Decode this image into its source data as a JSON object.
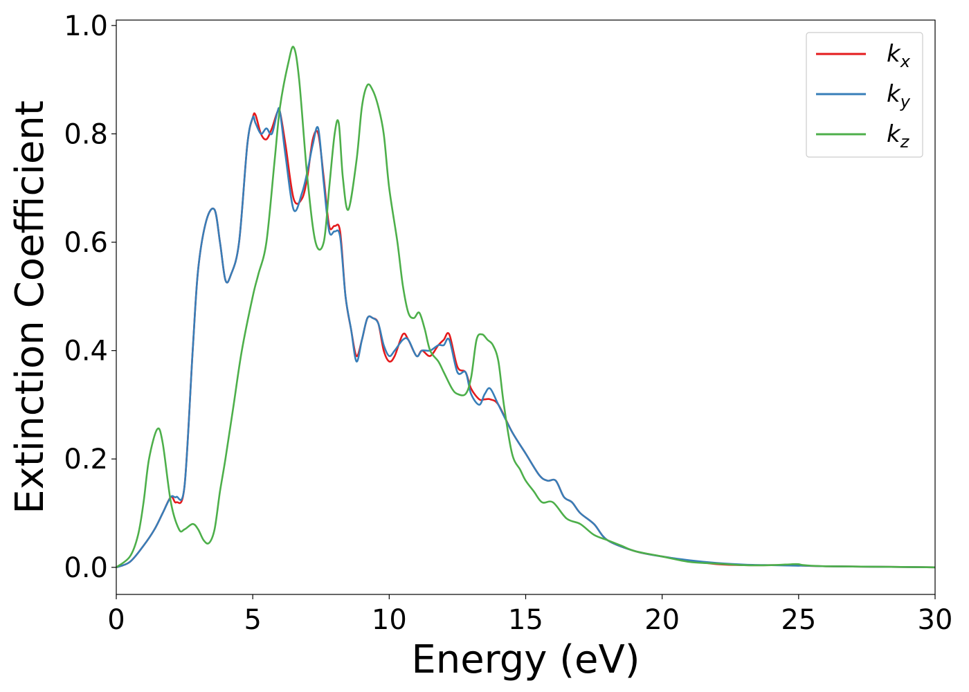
{
  "chart_data": {
    "type": "line",
    "xlabel": "Energy (eV)",
    "ylabel": "Extinction Coefficient",
    "xlim": [
      0,
      30
    ],
    "ylim": [
      -0.05,
      1.01
    ],
    "xticks": [
      0,
      5,
      10,
      15,
      20,
      25,
      30
    ],
    "yticks": [
      0.0,
      0.2,
      0.4,
      0.6,
      0.8,
      1.0
    ],
    "xtick_labels": [
      "0",
      "5",
      "10",
      "15",
      "20",
      "25",
      "30"
    ],
    "ytick_labels": [
      "0.0",
      "0.2",
      "0.4",
      "0.6",
      "0.8",
      "1.0"
    ],
    "grid": false,
    "legend_position": "top-right",
    "series": [
      {
        "name": "k",
        "subscript": "x",
        "color": "#e41a1c",
        "x": [
          0,
          0.5,
          1.0,
          1.4,
          1.7,
          2.0,
          2.2,
          2.5,
          2.8,
          3.0,
          3.3,
          3.6,
          3.8,
          4.0,
          4.2,
          4.5,
          4.8,
          5.0,
          5.1,
          5.3,
          5.5,
          5.7,
          5.9,
          6.0,
          6.2,
          6.5,
          6.8,
          7.0,
          7.2,
          7.4,
          7.6,
          7.8,
          8.0,
          8.2,
          8.4,
          8.6,
          8.8,
          9.0,
          9.2,
          9.4,
          9.6,
          9.8,
          10.0,
          10.2,
          10.5,
          10.7,
          11.0,
          11.2,
          11.5,
          11.8,
          12.0,
          12.2,
          12.5,
          12.8,
          13.0,
          13.3,
          13.5,
          13.7,
          14.0,
          14.5,
          15.0,
          15.5,
          15.8,
          16.1,
          16.4,
          16.7,
          17.0,
          17.5,
          18.0,
          19.0,
          20.0,
          21.0,
          22.0,
          23.0,
          24.0,
          24.9,
          25.2,
          26.0,
          28.0,
          30.0
        ],
        "y": [
          0.0,
          0.01,
          0.04,
          0.07,
          0.1,
          0.13,
          0.12,
          0.15,
          0.4,
          0.55,
          0.64,
          0.66,
          0.6,
          0.53,
          0.54,
          0.6,
          0.78,
          0.83,
          0.835,
          0.8,
          0.79,
          0.81,
          0.84,
          0.84,
          0.78,
          0.68,
          0.68,
          0.72,
          0.79,
          0.8,
          0.72,
          0.63,
          0.63,
          0.62,
          0.5,
          0.44,
          0.39,
          0.42,
          0.46,
          0.46,
          0.45,
          0.4,
          0.38,
          0.39,
          0.43,
          0.42,
          0.39,
          0.4,
          0.39,
          0.41,
          0.42,
          0.43,
          0.37,
          0.36,
          0.33,
          0.31,
          0.31,
          0.31,
          0.3,
          0.25,
          0.21,
          0.17,
          0.16,
          0.16,
          0.13,
          0.12,
          0.1,
          0.08,
          0.05,
          0.03,
          0.02,
          0.012,
          0.006,
          0.004,
          0.004,
          0.004,
          0.003,
          0.002,
          0.001,
          0.0
        ]
      },
      {
        "name": "k",
        "subscript": "y",
        "color": "#377eb8",
        "x": [
          0,
          0.5,
          1.0,
          1.4,
          1.7,
          2.0,
          2.2,
          2.5,
          2.8,
          3.0,
          3.3,
          3.6,
          3.8,
          4.0,
          4.2,
          4.5,
          4.8,
          5.0,
          5.1,
          5.3,
          5.5,
          5.7,
          5.9,
          6.0,
          6.2,
          6.5,
          6.8,
          7.0,
          7.2,
          7.4,
          7.6,
          7.8,
          8.0,
          8.2,
          8.4,
          8.6,
          8.8,
          9.0,
          9.2,
          9.4,
          9.6,
          9.8,
          10.0,
          10.2,
          10.5,
          10.7,
          11.0,
          11.2,
          11.5,
          11.8,
          12.0,
          12.2,
          12.5,
          12.8,
          13.0,
          13.3,
          13.5,
          13.7,
          14.0,
          14.5,
          15.0,
          15.5,
          15.8,
          16.1,
          16.4,
          16.7,
          17.0,
          17.5,
          18.0,
          19.0,
          20.0,
          21.0,
          22.0,
          23.0,
          24.0,
          24.9,
          25.2,
          26.0,
          28.0,
          30.0
        ],
        "y": [
          0.0,
          0.01,
          0.04,
          0.07,
          0.1,
          0.13,
          0.13,
          0.15,
          0.4,
          0.55,
          0.64,
          0.66,
          0.6,
          0.53,
          0.54,
          0.6,
          0.78,
          0.83,
          0.82,
          0.8,
          0.81,
          0.8,
          0.84,
          0.84,
          0.76,
          0.66,
          0.69,
          0.73,
          0.78,
          0.81,
          0.71,
          0.62,
          0.62,
          0.61,
          0.5,
          0.44,
          0.38,
          0.42,
          0.46,
          0.46,
          0.45,
          0.41,
          0.39,
          0.4,
          0.42,
          0.42,
          0.39,
          0.4,
          0.4,
          0.41,
          0.41,
          0.42,
          0.36,
          0.36,
          0.32,
          0.3,
          0.32,
          0.33,
          0.3,
          0.25,
          0.21,
          0.17,
          0.16,
          0.16,
          0.13,
          0.12,
          0.1,
          0.08,
          0.05,
          0.03,
          0.02,
          0.013,
          0.008,
          0.005,
          0.004,
          0.003,
          0.003,
          0.002,
          0.001,
          0.0
        ]
      },
      {
        "name": "k",
        "subscript": "z",
        "color": "#4daf4a",
        "x": [
          0,
          0.5,
          0.8,
          1.0,
          1.2,
          1.5,
          1.7,
          2.0,
          2.3,
          2.5,
          2.8,
          3.0,
          3.2,
          3.4,
          3.6,
          3.8,
          4.0,
          4.3,
          4.6,
          5.0,
          5.2,
          5.5,
          5.8,
          6.0,
          6.3,
          6.5,
          6.7,
          7.0,
          7.3,
          7.6,
          7.8,
          8.0,
          8.15,
          8.3,
          8.5,
          8.8,
          9.0,
          9.2,
          9.4,
          9.6,
          9.8,
          10.0,
          10.3,
          10.5,
          10.7,
          10.9,
          11.1,
          11.3,
          11.5,
          11.8,
          12.0,
          12.3,
          12.5,
          12.8,
          13.0,
          13.2,
          13.4,
          13.6,
          13.8,
          14.0,
          14.2,
          14.5,
          14.8,
          15.0,
          15.3,
          15.6,
          16.0,
          16.5,
          17.0,
          17.5,
          18.0,
          18.5,
          19.0,
          20.0,
          21.0,
          22.0,
          23.0,
          24.0,
          24.9,
          25.2,
          26.0,
          28.0,
          30.0
        ],
        "y": [
          0.0,
          0.02,
          0.06,
          0.12,
          0.2,
          0.255,
          0.23,
          0.12,
          0.07,
          0.07,
          0.08,
          0.07,
          0.05,
          0.045,
          0.07,
          0.14,
          0.2,
          0.3,
          0.4,
          0.5,
          0.54,
          0.6,
          0.75,
          0.85,
          0.93,
          0.96,
          0.9,
          0.72,
          0.6,
          0.6,
          0.7,
          0.8,
          0.82,
          0.72,
          0.66,
          0.75,
          0.85,
          0.89,
          0.88,
          0.85,
          0.8,
          0.7,
          0.6,
          0.52,
          0.47,
          0.46,
          0.47,
          0.44,
          0.4,
          0.38,
          0.36,
          0.33,
          0.32,
          0.32,
          0.35,
          0.42,
          0.43,
          0.42,
          0.41,
          0.38,
          0.3,
          0.21,
          0.18,
          0.16,
          0.14,
          0.12,
          0.12,
          0.09,
          0.08,
          0.06,
          0.05,
          0.04,
          0.03,
          0.02,
          0.01,
          0.007,
          0.004,
          0.004,
          0.006,
          0.004,
          0.002,
          0.001,
          0.0
        ]
      }
    ]
  }
}
